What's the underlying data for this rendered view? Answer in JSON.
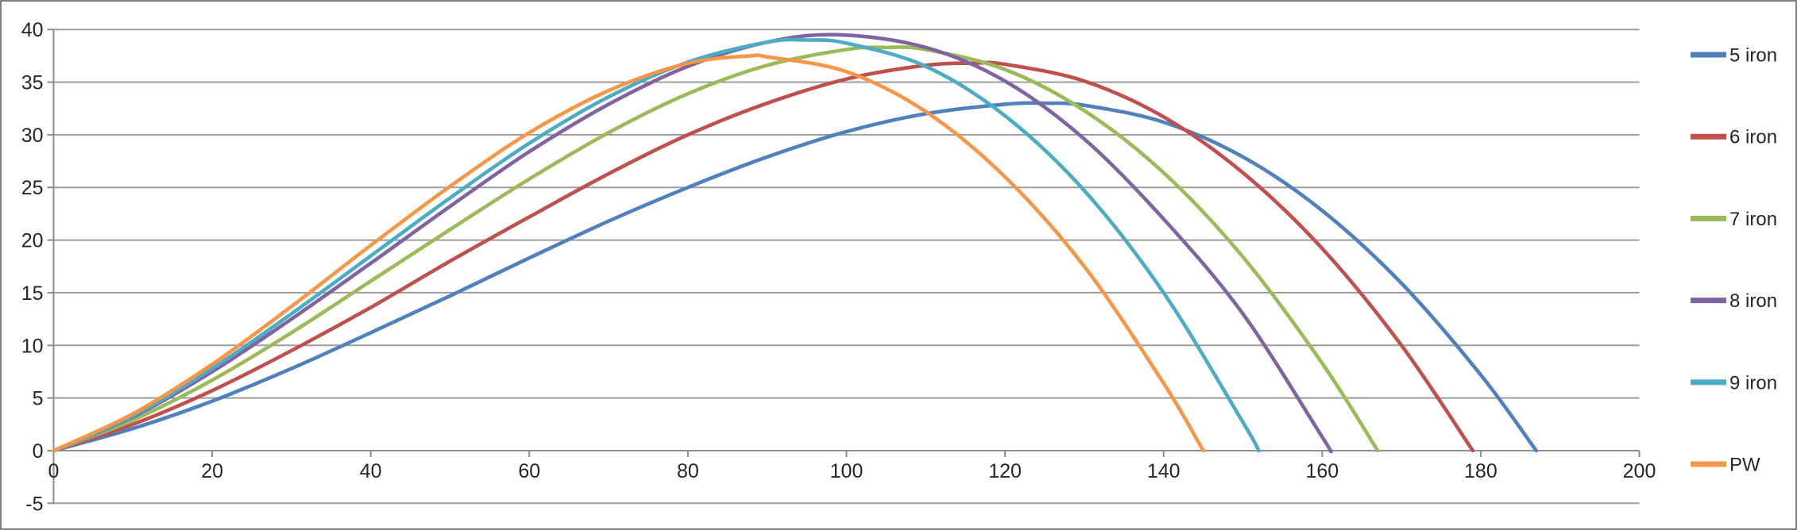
{
  "chart": {
    "background": "#ffffff",
    "frame_color": "#7f7f7f",
    "gridline_color": "#9d9d9d",
    "axis_color": "#8e8e8e",
    "label_color": "#262626",
    "x_tick_labels": [
      "0",
      "20",
      "40",
      "60",
      "80",
      "100",
      "120",
      "140",
      "160",
      "180",
      "200"
    ],
    "y_tick_labels": [
      "-5",
      "0",
      "5",
      "10",
      "15",
      "20",
      "25",
      "30",
      "35",
      "40"
    ]
  },
  "chart_data": {
    "type": "line",
    "title": "",
    "xlabel": "",
    "ylabel": "",
    "xlim": [
      0,
      200
    ],
    "ylim": [
      -5,
      40
    ],
    "x_ticks": [
      0,
      20,
      40,
      60,
      80,
      100,
      120,
      140,
      160,
      180,
      200
    ],
    "y_ticks": [
      -5,
      0,
      5,
      10,
      15,
      20,
      25,
      30,
      35,
      40
    ],
    "grid": true,
    "legend_position": "right",
    "series": [
      {
        "name": "5 iron",
        "color": "#4F81BD",
        "peak_height": 33.0,
        "peak_x": 125,
        "carry_distance": 187,
        "points": [
          [
            0,
            0
          ],
          [
            10,
            2.1
          ],
          [
            20,
            4.7
          ],
          [
            30,
            7.8
          ],
          [
            40,
            11.2
          ],
          [
            50,
            14.7
          ],
          [
            60,
            18.3
          ],
          [
            70,
            21.8
          ],
          [
            80,
            25.0
          ],
          [
            90,
            27.9
          ],
          [
            100,
            30.3
          ],
          [
            110,
            32.0
          ],
          [
            120,
            32.9
          ],
          [
            125,
            33.0
          ],
          [
            130,
            32.8
          ],
          [
            140,
            31.2
          ],
          [
            150,
            27.9
          ],
          [
            160,
            22.8
          ],
          [
            170,
            15.9
          ],
          [
            180,
            7.2
          ],
          [
            187,
            0
          ]
        ]
      },
      {
        "name": "6 iron",
        "color": "#C0504D",
        "peak_height": 36.8,
        "peak_x": 116,
        "carry_distance": 179,
        "points": [
          [
            0,
            0
          ],
          [
            10,
            2.5
          ],
          [
            20,
            5.7
          ],
          [
            30,
            9.5
          ],
          [
            40,
            13.6
          ],
          [
            50,
            18.0
          ],
          [
            60,
            22.2
          ],
          [
            70,
            26.3
          ],
          [
            80,
            30.0
          ],
          [
            90,
            33.0
          ],
          [
            100,
            35.3
          ],
          [
            110,
            36.6
          ],
          [
            116,
            36.8
          ],
          [
            120,
            36.7
          ],
          [
            130,
            35.1
          ],
          [
            140,
            31.7
          ],
          [
            150,
            26.4
          ],
          [
            160,
            19.2
          ],
          [
            170,
            10.0
          ],
          [
            179,
            0
          ]
        ]
      },
      {
        "name": "7 iron",
        "color": "#9BBB59",
        "peak_height": 38.3,
        "peak_x": 105,
        "carry_distance": 167,
        "points": [
          [
            0,
            0
          ],
          [
            10,
            2.9
          ],
          [
            20,
            6.7
          ],
          [
            30,
            11.2
          ],
          [
            40,
            16.1
          ],
          [
            50,
            21.0
          ],
          [
            60,
            25.8
          ],
          [
            70,
            30.2
          ],
          [
            80,
            33.9
          ],
          [
            90,
            36.6
          ],
          [
            100,
            38.1
          ],
          [
            105,
            38.3
          ],
          [
            110,
            38.1
          ],
          [
            120,
            36.2
          ],
          [
            130,
            32.3
          ],
          [
            140,
            26.4
          ],
          [
            150,
            18.4
          ],
          [
            160,
            8.3
          ],
          [
            167,
            0
          ]
        ]
      },
      {
        "name": "8 iron",
        "color": "#8064A2",
        "peak_height": 39.5,
        "peak_x": 99,
        "carry_distance": 161,
        "points": [
          [
            0,
            0
          ],
          [
            10,
            3.2
          ],
          [
            20,
            7.5
          ],
          [
            30,
            12.5
          ],
          [
            40,
            17.8
          ],
          [
            50,
            23.2
          ],
          [
            60,
            28.4
          ],
          [
            70,
            32.9
          ],
          [
            80,
            36.5
          ],
          [
            90,
            38.8
          ],
          [
            99,
            39.5
          ],
          [
            110,
            38.3
          ],
          [
            120,
            35.1
          ],
          [
            130,
            29.6
          ],
          [
            140,
            22.0
          ],
          [
            150,
            13.0
          ],
          [
            160,
            1.3
          ],
          [
            161,
            0
          ]
        ]
      },
      {
        "name": "9 iron",
        "color": "#4BACC6",
        "peak_height": 39.0,
        "peak_x": 95,
        "carry_distance": 152,
        "points": [
          [
            0,
            0
          ],
          [
            10,
            3.3
          ],
          [
            20,
            7.8
          ],
          [
            30,
            13.0
          ],
          [
            40,
            18.5
          ],
          [
            50,
            24.0
          ],
          [
            60,
            29.2
          ],
          [
            70,
            33.6
          ],
          [
            80,
            36.9
          ],
          [
            90,
            38.8
          ],
          [
            95,
            39.0
          ],
          [
            100,
            38.7
          ],
          [
            110,
            36.5
          ],
          [
            120,
            31.8
          ],
          [
            130,
            24.7
          ],
          [
            140,
            15.0
          ],
          [
            150,
            2.7
          ],
          [
            152,
            0
          ]
        ]
      },
      {
        "name": "PW",
        "color": "#F79646",
        "peak_height": 37.5,
        "peak_x": 88,
        "carry_distance": 145,
        "points": [
          [
            0,
            0
          ],
          [
            10,
            3.5
          ],
          [
            20,
            8.2
          ],
          [
            30,
            13.7
          ],
          [
            40,
            19.5
          ],
          [
            50,
            25.1
          ],
          [
            60,
            30.2
          ],
          [
            70,
            34.2
          ],
          [
            80,
            36.8
          ],
          [
            88,
            37.5
          ],
          [
            90,
            37.4
          ],
          [
            100,
            36.0
          ],
          [
            110,
            32.2
          ],
          [
            120,
            26.0
          ],
          [
            130,
            17.5
          ],
          [
            140,
            6.4
          ],
          [
            145,
            0
          ]
        ]
      }
    ]
  }
}
